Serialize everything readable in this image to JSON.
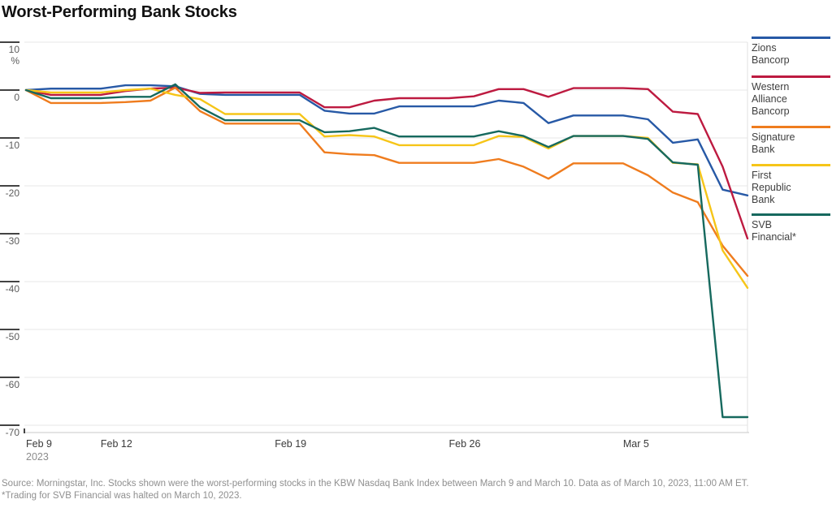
{
  "title": "Worst-Performing Bank Stocks",
  "source": {
    "line1": "Source: Morningstar, Inc. Stocks shown were the worst-performing stocks in the KBW Nasdaq Bank Index between March 9 and March 10. Data as of March 10, 2023, 11:00 AM ET.",
    "line2": "*Trading for SVB Financial was halted on March 10, 2023."
  },
  "chart_data": {
    "type": "line",
    "title": "Worst-Performing Bank Stocks",
    "unit": "%",
    "x_start": "Feb 9",
    "x_end": "Mar 10",
    "x_tick_labels": [
      "Feb 9",
      "Feb 12",
      "Feb 19",
      "Feb 26",
      "Mar 5"
    ],
    "x_year_label": "2023",
    "y_ticks": [
      10,
      0,
      -10,
      -20,
      -30,
      -40,
      -50,
      -60,
      -70
    ],
    "ylim": [
      -71.5,
      10
    ],
    "grid": true,
    "legend_position": "right",
    "dates": [
      "Feb 9",
      "Feb 10",
      "Feb 13",
      "Feb 14",
      "Feb 15",
      "Feb 16",
      "Feb 17",
      "Feb 21",
      "Feb 22",
      "Feb 23",
      "Feb 24",
      "Feb 27",
      "Feb 28",
      "Mar 1",
      "Mar 2",
      "Mar 3",
      "Mar 6",
      "Mar 7",
      "Mar 8",
      "Mar 9",
      "Mar 10"
    ],
    "series": [
      {
        "name": "Zions Bancorp",
        "legend_lines": [
          "Zions",
          "Bancorp"
        ],
        "color": "#2759a6",
        "values": [
          0,
          0.3,
          1.0,
          1.0,
          0.8,
          -0.8,
          -1.0,
          -4.3,
          -4.9,
          -4.9,
          -3.4,
          -3.4,
          -2.2,
          -2.7,
          -6.9,
          -5.3,
          -6.1,
          -11.0,
          -10.3,
          -20.8,
          -22.0
        ]
      },
      {
        "name": "Western Alliance Bancorp",
        "legend_lines": [
          "Western",
          "Alliance",
          "Bancorp"
        ],
        "color": "#bd1a40",
        "values": [
          0,
          -1.0,
          -0.2,
          0.3,
          0.5,
          -0.6,
          -0.5,
          -3.6,
          -3.6,
          -2.2,
          -1.7,
          -1.3,
          0.2,
          0.2,
          -1.4,
          0.4,
          0.2,
          -4.5,
          -5.0,
          -16.0,
          -31.0
        ]
      },
      {
        "name": "Signature Bank",
        "legend_lines": [
          "Signature",
          "Bank"
        ],
        "color": "#ef7c1e",
        "values": [
          0,
          -2.7,
          -2.5,
          -2.2,
          0.5,
          -4.4,
          -7.0,
          -13.0,
          -13.4,
          -13.6,
          -15.2,
          -15.2,
          -14.4,
          -16.0,
          -18.5,
          -15.3,
          -17.8,
          -21.4,
          -23.4,
          -32.5,
          -38.8
        ]
      },
      {
        "name": "First Republic Bank",
        "legend_lines": [
          "First",
          "Republic",
          "Bank"
        ],
        "color": "#f6c518",
        "values": [
          0,
          -0.5,
          0.0,
          0.3,
          -1.0,
          -1.9,
          -5.0,
          -9.7,
          -9.4,
          -9.7,
          -11.5,
          -11.5,
          -9.6,
          -9.8,
          -12.2,
          -9.6,
          -10.0,
          -15.2,
          -15.5,
          -33.5,
          -41.3
        ]
      },
      {
        "name": "SVB Financial*",
        "legend_lines": [
          "SVB",
          "Financial*"
        ],
        "color": "#16695e",
        "values": [
          0,
          -1.7,
          -1.4,
          -1.4,
          1.2,
          -3.6,
          -6.3,
          -8.8,
          -8.6,
          -7.9,
          -9.7,
          -9.7,
          -8.6,
          -9.6,
          -11.9,
          -9.6,
          -10.2,
          -15.1,
          -15.6,
          -68.3,
          -68.3
        ]
      }
    ]
  }
}
